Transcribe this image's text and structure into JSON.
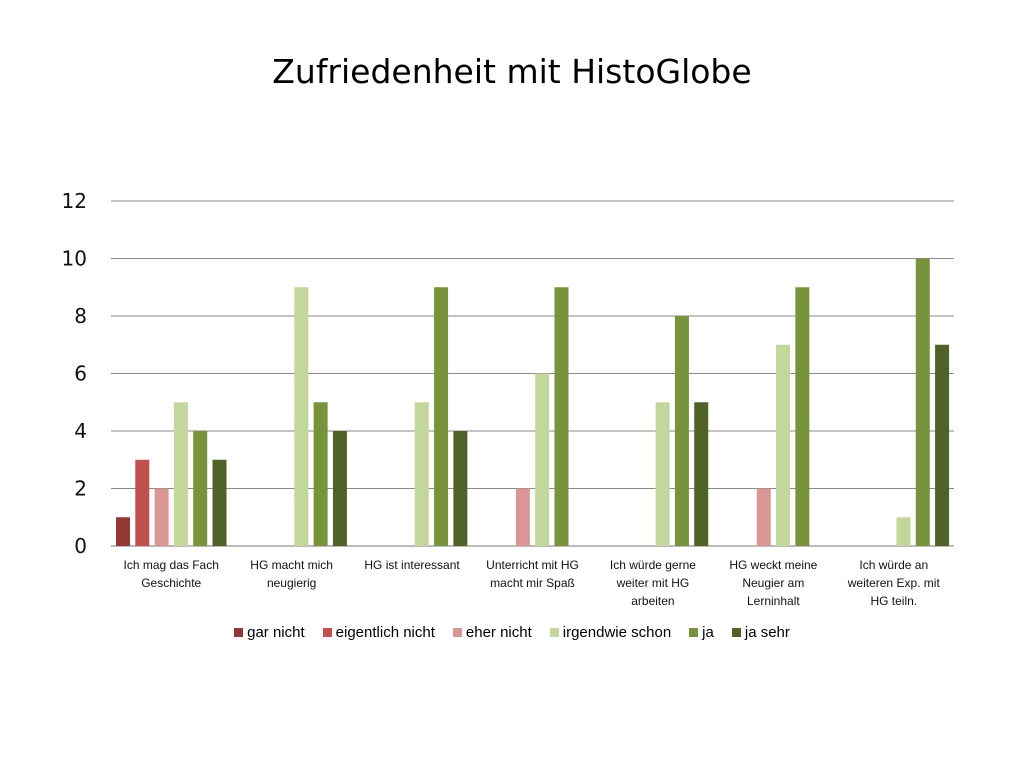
{
  "chart_data": {
    "type": "bar",
    "title": "Zufriedenheit mit HistoGlobe",
    "xlabel": "",
    "ylabel": "",
    "ylim": [
      0,
      12
    ],
    "yticks": [
      0,
      2,
      4,
      6,
      8,
      10,
      12
    ],
    "grid": true,
    "legend_position": "bottom",
    "categories": [
      "Ich mag das Fach Geschichte",
      "HG macht mich neugierig",
      "HG ist interessant",
      "Unterricht mit HG macht mir Spaß",
      "Ich würde gerne weiter mit HG arbeiten",
      "HG weckt meine Neugier am Lerninhalt",
      "Ich würde an weiteren Exp. mit HG teiln."
    ],
    "series": [
      {
        "name": "gar nicht",
        "color": "#953735",
        "values": [
          1,
          0,
          0,
          0,
          0,
          0,
          0
        ]
      },
      {
        "name": "eigentlich nicht",
        "color": "#c0504d",
        "values": [
          3,
          0,
          0,
          0,
          0,
          0,
          0
        ]
      },
      {
        "name": "eher nicht",
        "color": "#d99694",
        "values": [
          2,
          0,
          0,
          2,
          0,
          2,
          0
        ]
      },
      {
        "name": "irgendwie schon",
        "color": "#c3d69b",
        "values": [
          5,
          9,
          5,
          6,
          5,
          7,
          1
        ]
      },
      {
        "name": "ja",
        "color": "#77933c",
        "values": [
          4,
          5,
          9,
          9,
          8,
          9,
          10
        ]
      },
      {
        "name": "ja sehr",
        "color": "#4f6228",
        "values": [
          3,
          4,
          4,
          0,
          5,
          0,
          7
        ]
      }
    ]
  },
  "category_label_lines": [
    [
      "Ich mag das Fach",
      "Geschichte"
    ],
    [
      "HG macht mich",
      "neugierig"
    ],
    [
      "HG ist interessant"
    ],
    [
      "Unterricht mit HG",
      "macht mir Spaß"
    ],
    [
      "Ich würde gerne",
      "weiter mit HG",
      "arbeiten"
    ],
    [
      "HG weckt meine",
      "Neugier am",
      "Lerninhalt"
    ],
    [
      "Ich würde an",
      "weiteren Exp. mit",
      "HG teiln."
    ]
  ]
}
